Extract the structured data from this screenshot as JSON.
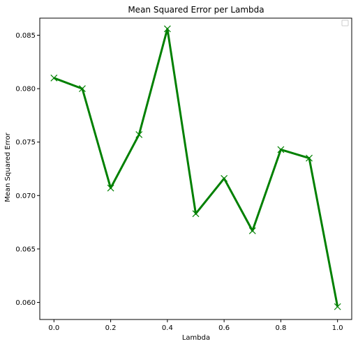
{
  "chart_data": {
    "type": "line",
    "title": "Mean Squared Error per Lambda",
    "xlabel": "Lambda",
    "ylabel": "Mean Squared Error",
    "xlim": [
      -0.05,
      1.05
    ],
    "ylim": [
      0.0584,
      0.0866
    ],
    "x_ticks": [
      0.0,
      0.2,
      0.4,
      0.6,
      0.8,
      1.0
    ],
    "x_tick_labels": [
      "0.0",
      "0.2",
      "0.4",
      "0.6",
      "0.8",
      "1.0"
    ],
    "y_ticks": [
      0.06,
      0.065,
      0.07,
      0.075,
      0.08,
      0.085
    ],
    "y_tick_labels": [
      "0.060",
      "0.065",
      "0.070",
      "0.075",
      "0.080",
      "0.085"
    ],
    "grid": false,
    "legend": {
      "placement": "top-right",
      "entries": []
    },
    "series": [
      {
        "color": "#008000",
        "marker": "x",
        "x": [
          0.0,
          0.1,
          0.2,
          0.3,
          0.4,
          0.5,
          0.6,
          0.7,
          0.8,
          0.9,
          1.0
        ],
        "values": [
          0.081,
          0.08,
          0.0707,
          0.0757,
          0.0856,
          0.0683,
          0.0716,
          0.0667,
          0.0743,
          0.0735,
          0.0596
        ]
      }
    ]
  }
}
